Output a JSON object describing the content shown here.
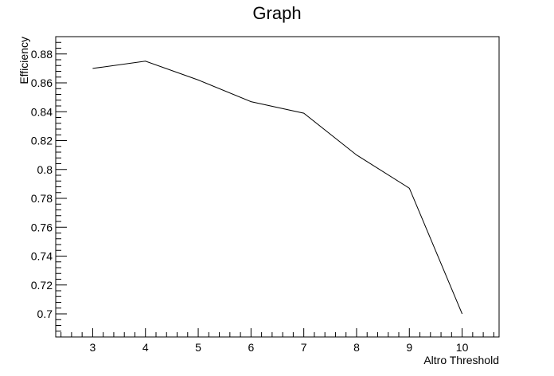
{
  "chart_data": {
    "type": "line",
    "title": "Graph",
    "xlabel": "Altro Threshold",
    "ylabel": "Efficiency",
    "xlim": [
      2.3,
      10.7
    ],
    "ylim": [
      0.684,
      0.892
    ],
    "x_ticks": [
      3,
      4,
      5,
      6,
      7,
      8,
      9,
      10
    ],
    "x_tick_labels": [
      "3",
      "4",
      "5",
      "6",
      "7",
      "8",
      "9",
      "10"
    ],
    "y_ticks": [
      0.7,
      0.72,
      0.74,
      0.76,
      0.78,
      0.8,
      0.82,
      0.84,
      0.86,
      0.88
    ],
    "y_tick_labels": [
      "0.7",
      "0.72",
      "0.74",
      "0.76",
      "0.78",
      "0.8",
      "0.82",
      "0.84",
      "0.86",
      "0.88"
    ],
    "grid": false,
    "line_color": "#000000",
    "x": [
      3,
      4,
      5,
      6,
      7,
      8,
      9,
      10
    ],
    "y": [
      0.87,
      0.875,
      0.862,
      0.847,
      0.839,
      0.81,
      0.787,
      0.7
    ]
  }
}
